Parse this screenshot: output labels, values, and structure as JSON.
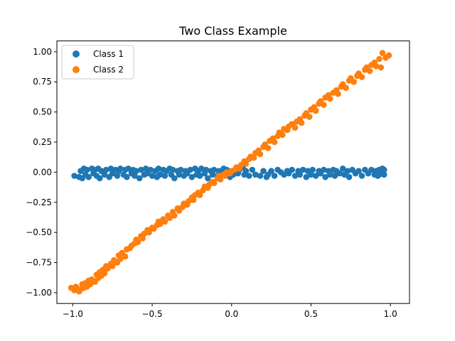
{
  "chart_data": {
    "type": "scatter",
    "title": "Two Class Example",
    "xlabel": "",
    "ylabel": "",
    "xlim": [
      -1.1,
      1.12
    ],
    "ylim": [
      -1.09,
      1.09
    ],
    "xticks": [
      -1.0,
      -0.5,
      0.0,
      0.5,
      1.0
    ],
    "xtick_labels": [
      "−1.0",
      "−0.5",
      "0.0",
      "0.5",
      "1.0"
    ],
    "yticks": [
      -1.0,
      -0.75,
      -0.5,
      -0.25,
      0.0,
      0.25,
      0.5,
      0.75,
      1.0
    ],
    "ytick_labels": [
      "−1.00",
      "−0.75",
      "−0.50",
      "−0.25",
      "0.00",
      "0.25",
      "0.50",
      "0.75",
      "1.00"
    ],
    "grid": false,
    "legend": "top-left",
    "series": [
      {
        "name": "Class 1",
        "color": "#1f77b4",
        "points": [
          [
            -0.99,
            -0.03
          ],
          [
            -0.96,
            -0.04
          ],
          [
            -0.95,
            0.01
          ],
          [
            -0.94,
            -0.05
          ],
          [
            -0.93,
            0.03
          ],
          [
            -0.92,
            -0.02
          ],
          [
            -0.91,
            0.02
          ],
          [
            -0.9,
            -0.04
          ],
          [
            -0.88,
            0.03
          ],
          [
            -0.87,
            -0.01
          ],
          [
            -0.86,
            0.02
          ],
          [
            -0.85,
            -0.03
          ],
          [
            -0.84,
            0.03
          ],
          [
            -0.83,
            -0.05
          ],
          [
            -0.82,
            0.01
          ],
          [
            -0.8,
            -0.02
          ],
          [
            -0.79,
            0.02
          ],
          [
            -0.77,
            -0.04
          ],
          [
            -0.76,
            0.03
          ],
          [
            -0.75,
            -0.01
          ],
          [
            -0.73,
            0.02
          ],
          [
            -0.72,
            -0.03
          ],
          [
            -0.71,
            0.01
          ],
          [
            -0.7,
            0.03
          ],
          [
            -0.68,
            -0.02
          ],
          [
            -0.67,
            0.02
          ],
          [
            -0.66,
            -0.04
          ],
          [
            -0.65,
            0.03
          ],
          [
            -0.63,
            -0.01
          ],
          [
            -0.62,
            0.02
          ],
          [
            -0.61,
            -0.03
          ],
          [
            -0.6,
            0.01
          ],
          [
            -0.58,
            -0.05
          ],
          [
            -0.57,
            0.02
          ],
          [
            -0.55,
            -0.02
          ],
          [
            -0.54,
            0.03
          ],
          [
            -0.53,
            -0.01
          ],
          [
            -0.51,
            0.02
          ],
          [
            -0.5,
            -0.03
          ],
          [
            -0.48,
            0.01
          ],
          [
            -0.47,
            -0.04
          ],
          [
            -0.46,
            0.03
          ],
          [
            -0.45,
            -0.02
          ],
          [
            -0.43,
            0.02
          ],
          [
            -0.42,
            -0.03
          ],
          [
            -0.41,
            0.01
          ],
          [
            -0.39,
            0.03
          ],
          [
            -0.38,
            -0.02
          ],
          [
            -0.37,
            0.02
          ],
          [
            -0.36,
            -0.05
          ],
          [
            -0.34,
            0.01
          ],
          [
            -0.33,
            -0.02
          ],
          [
            -0.32,
            0.02
          ],
          [
            -0.3,
            -0.03
          ],
          [
            -0.29,
            0.01
          ],
          [
            -0.28,
            -0.01
          ],
          [
            -0.26,
            0.02
          ],
          [
            -0.25,
            -0.04
          ],
          [
            -0.23,
            0.03
          ],
          [
            -0.22,
            -0.02
          ],
          [
            -0.21,
            0.01
          ],
          [
            -0.2,
            -0.03
          ],
          [
            -0.19,
            0.03
          ],
          [
            -0.17,
            -0.01
          ],
          [
            -0.16,
            0.02
          ],
          [
            -0.15,
            -0.05
          ],
          [
            -0.13,
            0.01
          ],
          [
            -0.12,
            -0.02
          ],
          [
            -0.11,
            0.02
          ],
          [
            -0.09,
            -0.03
          ],
          [
            -0.08,
            0.01
          ],
          [
            -0.07,
            -0.01
          ],
          [
            -0.05,
            0.03
          ],
          [
            -0.04,
            -0.02
          ],
          [
            -0.03,
            0.02
          ],
          [
            -0.01,
            -0.04
          ],
          [
            0.0,
            0.01
          ],
          [
            0.01,
            -0.02
          ],
          [
            0.03,
            0.03
          ],
          [
            0.04,
            -0.01
          ],
          [
            0.05,
            0.02
          ],
          [
            0.07,
            0.04
          ],
          [
            0.08,
            -0.02
          ],
          [
            0.09,
            0.01
          ],
          [
            0.11,
            -0.03
          ],
          [
            0.13,
            0.02
          ],
          [
            0.15,
            -0.02
          ],
          [
            0.18,
            -0.03
          ],
          [
            0.2,
            0.01
          ],
          [
            0.22,
            -0.04
          ],
          [
            0.23,
            -0.02
          ],
          [
            0.25,
            0.01
          ],
          [
            0.27,
            -0.03
          ],
          [
            0.29,
            0.02
          ],
          [
            0.31,
            0.0
          ],
          [
            0.33,
            -0.02
          ],
          [
            0.35,
            0.01
          ],
          [
            0.36,
            -0.01
          ],
          [
            0.38,
            0.02
          ],
          [
            0.4,
            -0.03
          ],
          [
            0.42,
            0.01
          ],
          [
            0.43,
            -0.02
          ],
          [
            0.45,
            0.02
          ],
          [
            0.47,
            -0.04
          ],
          [
            0.48,
            0.01
          ],
          [
            0.5,
            -0.02
          ],
          [
            0.51,
            0.02
          ],
          [
            0.53,
            -0.03
          ],
          [
            0.55,
            0.01
          ],
          [
            0.56,
            -0.01
          ],
          [
            0.58,
            0.02
          ],
          [
            0.59,
            -0.04
          ],
          [
            0.61,
            0.01
          ],
          [
            0.62,
            -0.02
          ],
          [
            0.64,
            0.02
          ],
          [
            0.65,
            -0.03
          ],
          [
            0.66,
            0.01
          ],
          [
            0.68,
            -0.01
          ],
          [
            0.7,
            0.03
          ],
          [
            0.71,
            -0.02
          ],
          [
            0.73,
            0.01
          ],
          [
            0.74,
            -0.04
          ],
          [
            0.76,
            0.02
          ],
          [
            0.78,
            -0.01
          ],
          [
            0.8,
            0.01
          ],
          [
            0.82,
            -0.03
          ],
          [
            0.84,
            0.02
          ],
          [
            0.86,
            -0.01
          ],
          [
            0.88,
            0.02
          ],
          [
            0.9,
            -0.02
          ],
          [
            0.91,
            0.01
          ],
          [
            0.92,
            -0.03
          ],
          [
            0.93,
            0.02
          ],
          [
            0.94,
            -0.01
          ],
          [
            0.95,
            0.03
          ],
          [
            0.96,
            -0.02
          ],
          [
            0.94,
            0.0
          ],
          [
            0.95,
            0.01
          ],
          [
            0.93,
            -0.02
          ],
          [
            0.96,
            0.02
          ]
        ]
      },
      {
        "name": "Class 2",
        "color": "#ff7f0e",
        "points": [
          [
            -1.01,
            -0.96
          ],
          [
            -0.99,
            -0.98
          ],
          [
            -0.98,
            -0.95
          ],
          [
            -0.96,
            -0.99
          ],
          [
            -0.95,
            -0.97
          ],
          [
            -0.94,
            -0.93
          ],
          [
            -0.93,
            -0.96
          ],
          [
            -0.92,
            -0.92
          ],
          [
            -0.91,
            -0.95
          ],
          [
            -0.9,
            -0.9
          ],
          [
            -0.89,
            -0.93
          ],
          [
            -0.88,
            -0.89
          ],
          [
            -0.86,
            -0.91
          ],
          [
            -0.85,
            -0.85
          ],
          [
            -0.84,
            -0.88
          ],
          [
            -0.83,
            -0.83
          ],
          [
            -0.82,
            -0.86
          ],
          [
            -0.81,
            -0.81
          ],
          [
            -0.8,
            -0.84
          ],
          [
            -0.79,
            -0.78
          ],
          [
            -0.78,
            -0.8
          ],
          [
            -0.76,
            -0.76
          ],
          [
            -0.75,
            -0.78
          ],
          [
            -0.74,
            -0.73
          ],
          [
            -0.72,
            -0.75
          ],
          [
            -0.71,
            -0.69
          ],
          [
            -0.7,
            -0.72
          ],
          [
            -0.69,
            -0.67
          ],
          [
            -0.67,
            -0.7
          ],
          [
            -0.66,
            -0.64
          ],
          [
            -0.64,
            -0.63
          ],
          [
            -0.63,
            -0.61
          ],
          [
            -0.61,
            -0.59
          ],
          [
            -0.6,
            -0.56
          ],
          [
            -0.59,
            -0.58
          ],
          [
            -0.57,
            -0.53
          ],
          [
            -0.56,
            -0.55
          ],
          [
            -0.55,
            -0.51
          ],
          [
            -0.53,
            -0.48
          ],
          [
            -0.52,
            -0.5
          ],
          [
            -0.5,
            -0.46
          ],
          [
            -0.49,
            -0.47
          ],
          [
            -0.47,
            -0.44
          ],
          [
            -0.46,
            -0.41
          ],
          [
            -0.45,
            -0.43
          ],
          [
            -0.43,
            -0.39
          ],
          [
            -0.42,
            -0.41
          ],
          [
            -0.4,
            -0.36
          ],
          [
            -0.39,
            -0.38
          ],
          [
            -0.37,
            -0.33
          ],
          [
            -0.36,
            -0.36
          ],
          [
            -0.34,
            -0.3
          ],
          [
            -0.33,
            -0.32
          ],
          [
            -0.31,
            -0.29
          ],
          [
            -0.3,
            -0.26
          ],
          [
            -0.28,
            -0.27
          ],
          [
            -0.27,
            -0.24
          ],
          [
            -0.25,
            -0.21
          ],
          [
            -0.24,
            -0.23
          ],
          [
            -0.23,
            -0.19
          ],
          [
            -0.21,
            -0.17
          ],
          [
            -0.2,
            -0.19
          ],
          [
            -0.18,
            -0.15
          ],
          [
            -0.17,
            -0.12
          ],
          [
            -0.15,
            -0.13
          ],
          [
            -0.14,
            -0.1
          ],
          [
            -0.12,
            -0.08
          ],
          [
            -0.11,
            -0.09
          ],
          [
            -0.09,
            -0.05
          ],
          [
            -0.08,
            -0.03
          ],
          [
            -0.07,
            -0.06
          ],
          [
            -0.05,
            -0.02
          ],
          [
            -0.04,
            -0.03
          ],
          [
            -0.03,
            0.0
          ],
          [
            -0.01,
            -0.01
          ],
          [
            0.0,
            0.01
          ],
          [
            0.02,
            0.02
          ],
          [
            0.03,
            0.04
          ],
          [
            0.05,
            0.03
          ],
          [
            0.06,
            0.06
          ],
          [
            0.08,
            0.09
          ],
          [
            0.09,
            0.07
          ],
          [
            0.11,
            0.11
          ],
          [
            0.12,
            0.13
          ],
          [
            0.14,
            0.12
          ],
          [
            0.15,
            0.16
          ],
          [
            0.17,
            0.18
          ],
          [
            0.18,
            0.15
          ],
          [
            0.2,
            0.21
          ],
          [
            0.21,
            0.23
          ],
          [
            0.23,
            0.2
          ],
          [
            0.24,
            0.26
          ],
          [
            0.26,
            0.28
          ],
          [
            0.27,
            0.25
          ],
          [
            0.29,
            0.3
          ],
          [
            0.3,
            0.33
          ],
          [
            0.32,
            0.31
          ],
          [
            0.33,
            0.36
          ],
          [
            0.35,
            0.35
          ],
          [
            0.36,
            0.38
          ],
          [
            0.38,
            0.4
          ],
          [
            0.4,
            0.37
          ],
          [
            0.41,
            0.42
          ],
          [
            0.43,
            0.44
          ],
          [
            0.44,
            0.41
          ],
          [
            0.46,
            0.47
          ],
          [
            0.47,
            0.49
          ],
          [
            0.49,
            0.46
          ],
          [
            0.5,
            0.52
          ],
          [
            0.52,
            0.54
          ],
          [
            0.53,
            0.51
          ],
          [
            0.55,
            0.57
          ],
          [
            0.56,
            0.59
          ],
          [
            0.58,
            0.56
          ],
          [
            0.59,
            0.62
          ],
          [
            0.61,
            0.64
          ],
          [
            0.62,
            0.61
          ],
          [
            0.64,
            0.66
          ],
          [
            0.66,
            0.68
          ],
          [
            0.67,
            0.65
          ],
          [
            0.69,
            0.71
          ],
          [
            0.7,
            0.73
          ],
          [
            0.72,
            0.7
          ],
          [
            0.74,
            0.76
          ],
          [
            0.75,
            0.78
          ],
          [
            0.77,
            0.75
          ],
          [
            0.79,
            0.8
          ],
          [
            0.8,
            0.82
          ],
          [
            0.82,
            0.79
          ],
          [
            0.84,
            0.85
          ],
          [
            0.85,
            0.87
          ],
          [
            0.87,
            0.84
          ],
          [
            0.88,
            0.89
          ],
          [
            0.9,
            0.91
          ],
          [
            0.91,
            0.88
          ],
          [
            0.93,
            0.94
          ],
          [
            0.94,
            0.87
          ],
          [
            0.95,
            0.99
          ],
          [
            0.97,
            0.95
          ],
          [
            0.99,
            0.97
          ]
        ]
      }
    ]
  }
}
